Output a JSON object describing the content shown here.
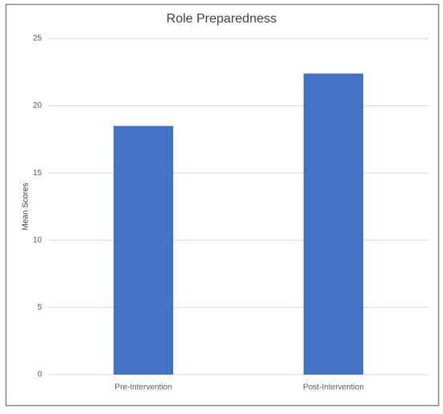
{
  "chart_data": {
    "type": "bar",
    "title": "Role Preparedness",
    "y_label": "Mean Scores",
    "categories": [
      "Pre-Intervention",
      "Post-Intervention"
    ],
    "values": [
      18.5,
      22.4
    ],
    "color": "#4472c4",
    "ylim": [
      0,
      25
    ],
    "yticks": [
      0,
      5,
      10,
      15,
      20,
      25
    ],
    "grid": true
  }
}
